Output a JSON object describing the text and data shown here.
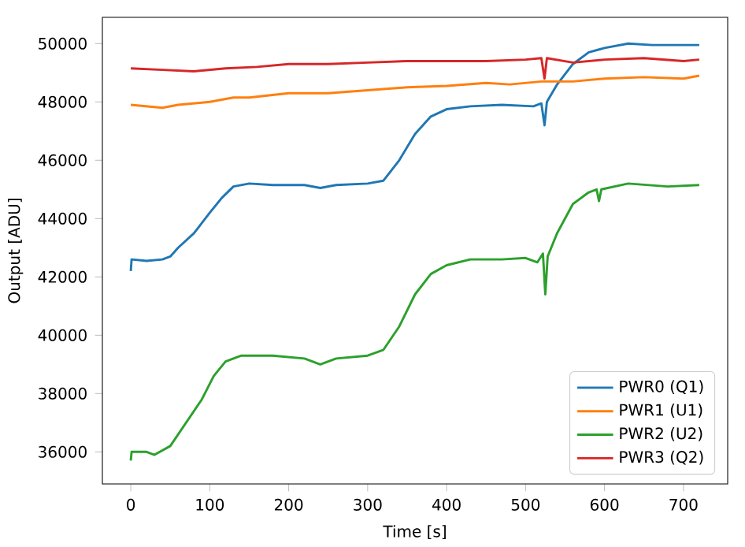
{
  "chart_data": {
    "type": "line",
    "xlabel": "Time [s]",
    "ylabel": "Output [ADU]",
    "xlim": [
      -36,
      756
    ],
    "ylim": [
      34900,
      50900
    ],
    "xticks": [
      0,
      100,
      200,
      300,
      400,
      500,
      600,
      700
    ],
    "yticks": [
      36000,
      38000,
      40000,
      42000,
      44000,
      46000,
      48000,
      50000
    ],
    "legend": "bottom right",
    "grid": false,
    "marker": "none",
    "line_style": "solid",
    "series": [
      {
        "name": "PWR0 (Q1)",
        "color": "#1f77b4",
        "x": [
          0,
          1,
          20,
          40,
          50,
          60,
          80,
          100,
          115,
          130,
          150,
          180,
          220,
          240,
          260,
          300,
          320,
          340,
          360,
          380,
          400,
          430,
          470,
          510,
          520,
          524,
          527,
          540,
          560,
          580,
          600,
          630,
          660,
          690,
          720
        ],
        "values": [
          42200,
          42600,
          42550,
          42600,
          42700,
          43000,
          43500,
          44200,
          44700,
          45100,
          45200,
          45150,
          45150,
          45050,
          45150,
          45200,
          45300,
          46000,
          46900,
          47500,
          47750,
          47850,
          47900,
          47850,
          47950,
          47200,
          48000,
          48600,
          49300,
          49700,
          49850,
          50000,
          49950,
          49950,
          49950
        ]
      },
      {
        "name": "PWR1 (U1)",
        "color": "#ff7f0e",
        "x": [
          0,
          20,
          40,
          60,
          100,
          130,
          150,
          200,
          250,
          300,
          350,
          400,
          450,
          480,
          520,
          560,
          600,
          650,
          700,
          720
        ],
        "values": [
          47900,
          47850,
          47800,
          47900,
          48000,
          48150,
          48150,
          48300,
          48300,
          48400,
          48500,
          48550,
          48650,
          48600,
          48700,
          48700,
          48800,
          48850,
          48800,
          48900
        ]
      },
      {
        "name": "PWR2 (U2)",
        "color": "#2ca02c",
        "x": [
          0,
          1,
          20,
          30,
          50,
          70,
          90,
          105,
          120,
          140,
          180,
          220,
          240,
          260,
          300,
          320,
          340,
          360,
          380,
          400,
          430,
          470,
          500,
          515,
          522,
          525,
          528,
          540,
          560,
          580,
          590,
          593,
          596,
          630,
          680,
          720
        ],
        "values": [
          35700,
          36000,
          36000,
          35900,
          36200,
          37000,
          37800,
          38600,
          39100,
          39300,
          39300,
          39200,
          39000,
          39200,
          39300,
          39500,
          40300,
          41400,
          42100,
          42400,
          42600,
          42600,
          42650,
          42500,
          42800,
          41400,
          42700,
          43500,
          44500,
          44900,
          45000,
          44600,
          45000,
          45200,
          45100,
          45150
        ]
      },
      {
        "name": "PWR3 (Q2)",
        "color": "#d62728",
        "x": [
          0,
          40,
          80,
          120,
          160,
          200,
          250,
          300,
          350,
          400,
          450,
          500,
          520,
          524,
          527,
          560,
          600,
          650,
          700,
          720
        ],
        "values": [
          49150,
          49100,
          49050,
          49150,
          49200,
          49300,
          49300,
          49350,
          49400,
          49400,
          49400,
          49450,
          49500,
          48800,
          49500,
          49350,
          49450,
          49500,
          49400,
          49450
        ]
      }
    ]
  }
}
